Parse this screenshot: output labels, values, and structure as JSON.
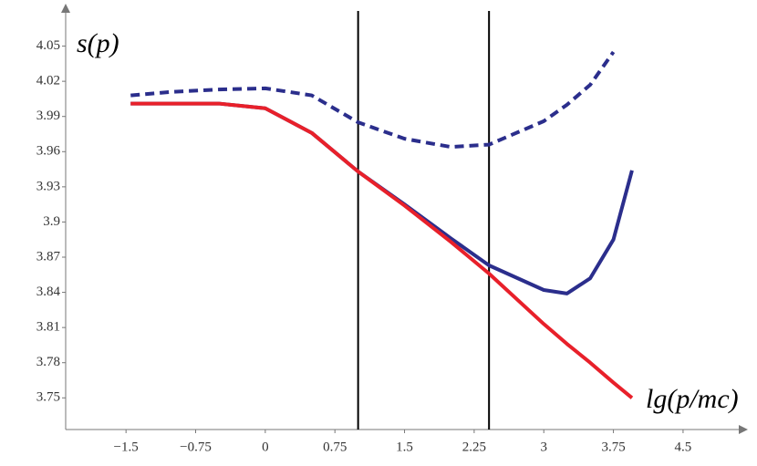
{
  "chart_data": {
    "type": "line",
    "y_label": "s(p)",
    "x_label": "lg(p/mc)",
    "x": [
      -1.45,
      -1,
      -0.5,
      0,
      0.5,
      1,
      1.5,
      2,
      2.41,
      3,
      3.25,
      3.5,
      3.75,
      3.95
    ],
    "series": [
      {
        "color": "#2b2e8c",
        "dash": true,
        "values": [
          4.008,
          4.011,
          4.013,
          4.014,
          4.008,
          3.985,
          3.971,
          3.964,
          3.966,
          3.986,
          4.0,
          4.017,
          4.045,
          null
        ]
      },
      {
        "color": "#2b2e8c",
        "dash": false,
        "values": [
          4.001,
          4.001,
          4.001,
          3.997,
          3.976,
          3.943,
          3.915,
          3.886,
          3.863,
          3.842,
          3.839,
          3.852,
          3.885,
          3.944
        ]
      },
      {
        "color": "#e8202a",
        "dash": false,
        "values": [
          4.001,
          4.001,
          4.001,
          3.997,
          3.976,
          3.943,
          3.914,
          3.883,
          3.856,
          3.813,
          3.796,
          3.78,
          3.763,
          3.75
        ]
      }
    ],
    "vlines": [
      1.0,
      2.41
    ],
    "xlim": [
      -2.15,
      5.1
    ],
    "ylim": [
      3.723,
      4.08
    ],
    "xticks": [
      {
        "value": -1.5,
        "label": "−1.5"
      },
      {
        "value": -0.75,
        "label": "−0.75"
      },
      0,
      0.75,
      1.5,
      2.25,
      3,
      3.75,
      4.5
    ],
    "yticks": [
      3.75,
      3.78,
      3.81,
      3.84,
      3.87,
      3.9,
      3.93,
      3.96,
      3.99,
      4.02,
      4.05
    ]
  }
}
